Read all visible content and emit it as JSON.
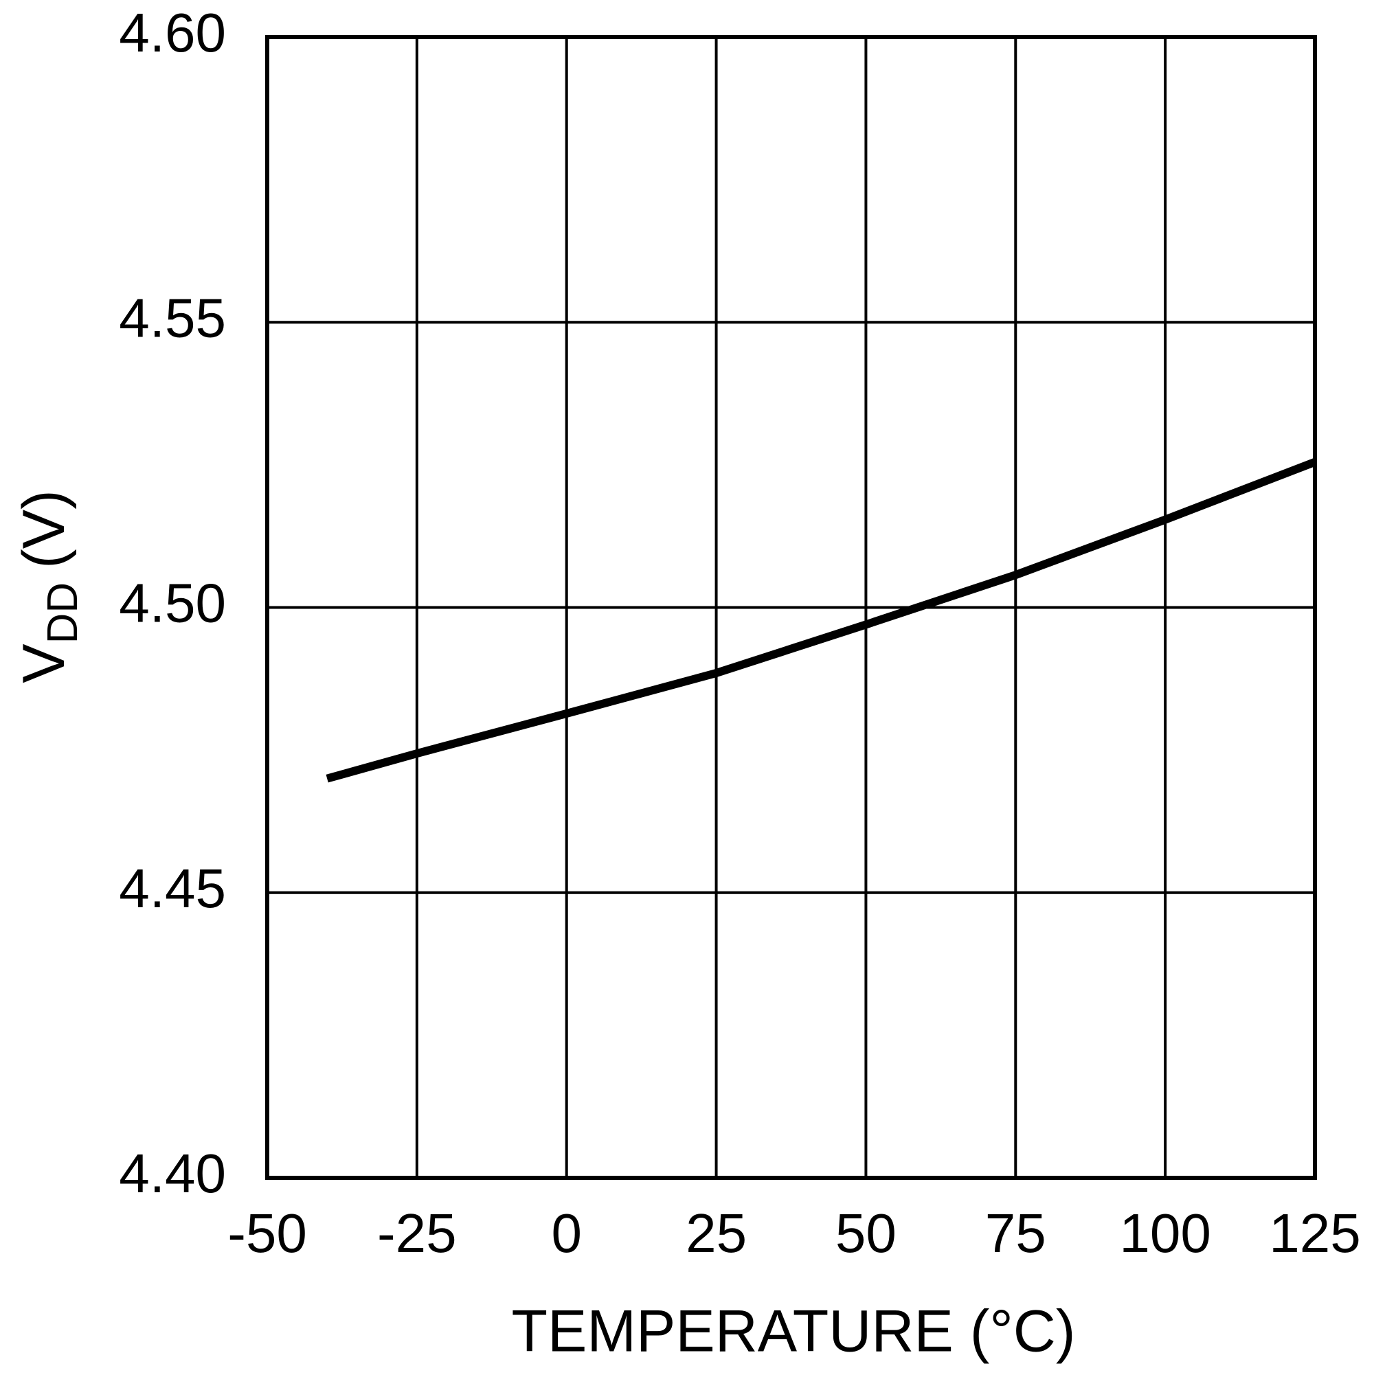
{
  "chart_data": {
    "type": "line",
    "x_label": "TEMPERATURE (°C)",
    "y_label": {
      "main": "V",
      "subscript": "DD",
      "suffix": "(V)"
    },
    "x": [
      -40,
      -25,
      0,
      25,
      50,
      75,
      100,
      125
    ],
    "series": [
      {
        "color": "#000000",
        "values": [
          4.47,
          4.4744,
          4.4814,
          4.4885,
          4.497,
          4.5057,
          4.5154,
          4.5255
        ]
      }
    ],
    "xlim": [
      -50,
      125
    ],
    "xticks": [
      -50,
      -25,
      0,
      25,
      50,
      75,
      100,
      125
    ],
    "ylim": [
      4.4,
      4.6
    ],
    "yticks": [
      {
        "value": 4.4,
        "label": "4.40"
      },
      4.45,
      {
        "value": 4.5,
        "label": "4.50"
      },
      4.55,
      {
        "value": 4.6,
        "label": "4.60"
      }
    ],
    "grid": true
  }
}
